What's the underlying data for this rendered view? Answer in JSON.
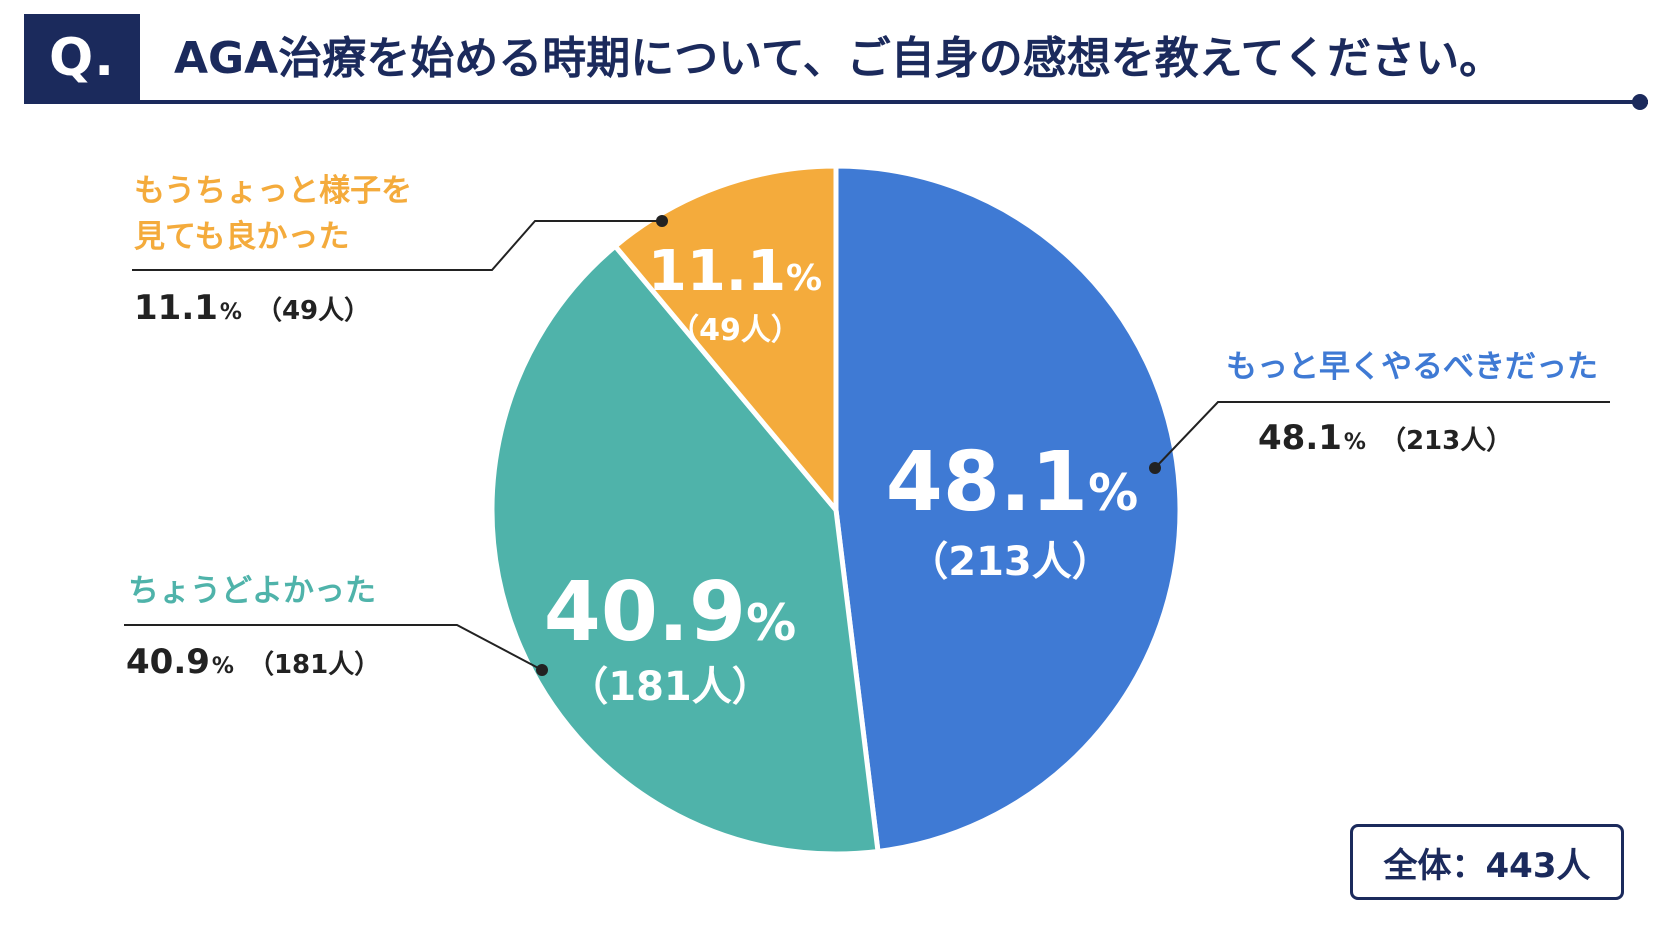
{
  "header": {
    "badge": "Q.",
    "question": "AGA治療を始める時期について、ご自身の感想を教えてください。"
  },
  "total_label": "全体：443人",
  "colors": {
    "navy": "#1b2a5c",
    "blue": "#3f7ad4",
    "teal": "#4fb3aa",
    "orange": "#f4ab3c"
  },
  "chart_data": {
    "type": "pie",
    "total": 443,
    "slices": [
      {
        "label": "もっと早くやるべきだった",
        "percent": 48.1,
        "pct_text": "48.1",
        "unit": "%",
        "count_text": "（213人）",
        "count": 213,
        "color": "#3f7ad4"
      },
      {
        "label": "ちょうどよかった",
        "percent": 40.9,
        "pct_text": "40.9",
        "unit": "%",
        "count_text": "（181人）",
        "count": 181,
        "color": "#4fb3aa"
      },
      {
        "label": "もうちょっと様子を見ても良かった",
        "label_line1": "もうちょっと様子を",
        "label_line2": "見ても良かった",
        "percent": 11.1,
        "pct_text": "11.1",
        "unit": "%",
        "count_text": "（49人）",
        "count": 49,
        "color": "#f4ab3c"
      }
    ]
  }
}
